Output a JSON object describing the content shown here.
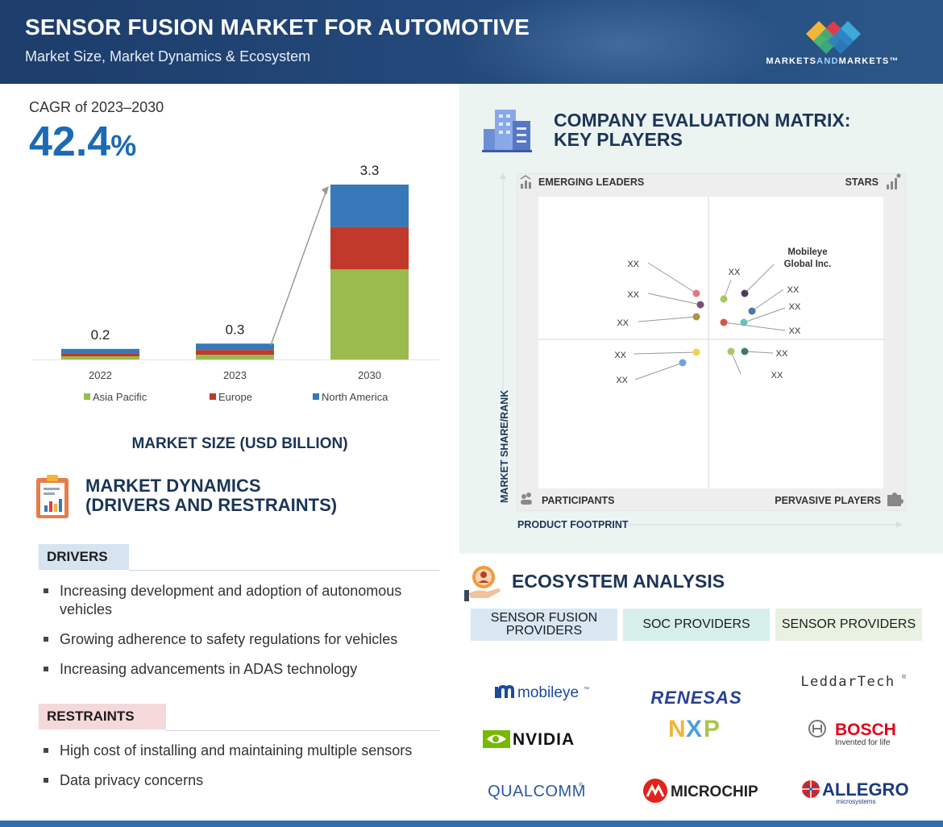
{
  "header": {
    "title": "SENSOR FUSION MARKET FOR AUTOMOTIVE",
    "subtitle": "Market Size, Market Dynamics & Ecosystem",
    "logo_text_a": "MARKETS",
    "logo_text_b": "AND",
    "logo_text_c": "MARKETS",
    "logo_tm": "™"
  },
  "cagr": {
    "label": "CAGR of 2023–2030",
    "value": "42.4",
    "unit": "%"
  },
  "chart_data": {
    "type": "bar",
    "stacked": true,
    "categories": [
      "2022",
      "2023",
      "2030"
    ],
    "totals": [
      "0.2",
      "0.3",
      "3.3"
    ],
    "series": [
      {
        "name": "Asia Pacific",
        "color": "#9bbb4f",
        "values": [
          0.06,
          0.09,
          1.7
        ]
      },
      {
        "name": "Europe",
        "color": "#c0392b",
        "values": [
          0.06,
          0.09,
          0.8
        ]
      },
      {
        "name": "North America",
        "color": "#3778b8",
        "values": [
          0.08,
          0.12,
          0.8
        ]
      }
    ],
    "ylim": [
      0,
      3.3
    ],
    "legend_position": "bottom",
    "xlabel": "MARKET SIZE (USD BILLION)"
  },
  "dynamics": {
    "title_line1": "MARKET DYNAMICS",
    "title_line2": "(DRIVERS AND RESTRAINTS)",
    "drivers_label": "DRIVERS",
    "drivers": [
      "Increasing development and adoption of autonomous vehicles",
      "Growing adherence to safety regulations for vehicles",
      "Increasing advancements in ADAS technology"
    ],
    "restraints_label": "RESTRAINTS",
    "restraints": [
      "High cost of installing and maintaining multiple sensors",
      "Data privacy concerns"
    ]
  },
  "matrix": {
    "title_line1": "COMPANY EVALUATION MATRIX:",
    "title_line2": "KEY PLAYERS",
    "quadrants": {
      "top_left": "EMERGING LEADERS",
      "top_right": "STARS",
      "bottom_left": "PARTICIPANTS",
      "bottom_right": "PERVASIVE PLAYERS"
    },
    "y_axis_label": "MARKET SHARE/RANK",
    "x_axis_label": "PRODUCT FOOTPRINT",
    "named_company_line1": "Mobileye",
    "named_company_line2": "Global Inc.",
    "point_label": "XX",
    "points": [
      {
        "color": "#e07a7a"
      },
      {
        "color": "#7a4f7a"
      },
      {
        "color": "#a99447"
      },
      {
        "color": "#a6c864"
      },
      {
        "color": "#4d3a5a"
      },
      {
        "color": "#4a78a8"
      },
      {
        "color": "#5ec7b8"
      },
      {
        "color": "#d9534f"
      },
      {
        "color": "#f3d24b"
      },
      {
        "color": "#6ea5d9"
      },
      {
        "color": "#a8c86a"
      },
      {
        "color": "#3e7a6e"
      }
    ]
  },
  "ecosystem": {
    "title": "ECOSYSTEM ANALYSIS",
    "headers": [
      "SENSOR FUSION\nPROVIDERS",
      "SOC PROVIDERS",
      "SENSOR PROVIDERS"
    ],
    "logos": {
      "mobileye": "mobileye",
      "mobileye_tm": "™",
      "renesas": "RENESAS",
      "leddartech": "LeddarTech",
      "reg": "®",
      "nvidia": "NVIDIA",
      "nxp_n": "N",
      "nxp_x": "X",
      "nxp_p": "P",
      "bosch": "BOSCH",
      "bosch_tagline": "Invented for life",
      "qualcomm": "QUALCOMM",
      "microchip": "MICROCHIP",
      "allegro": "ALLEGRO",
      "allegro_sub": "microsystems"
    }
  }
}
